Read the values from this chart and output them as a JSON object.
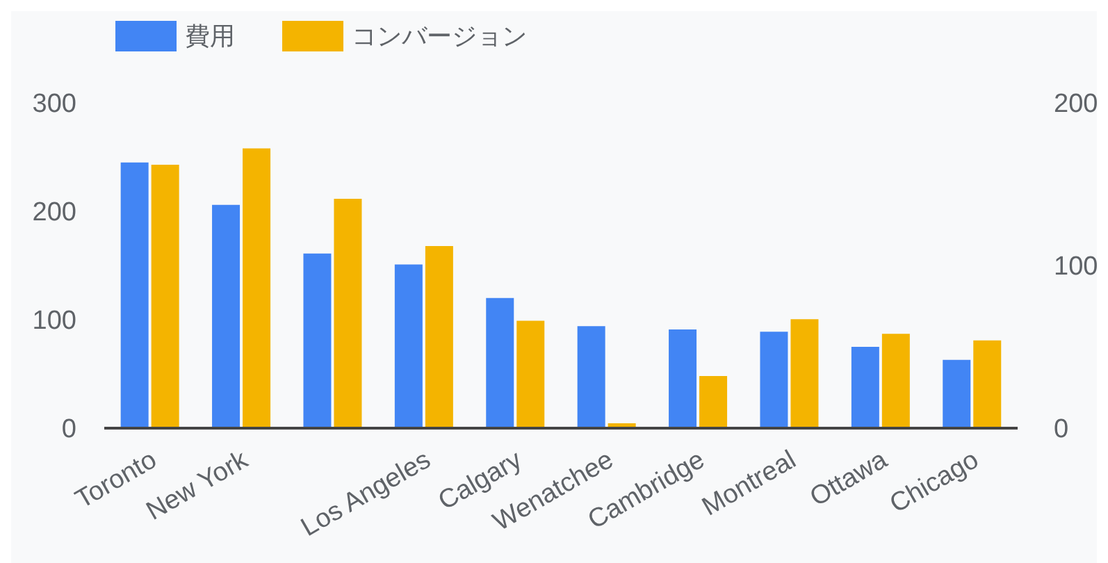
{
  "chart_data": {
    "type": "bar",
    "categories": [
      "Toronto",
      "New York",
      null,
      "Los Angeles",
      "Calgary",
      "Wenatchee",
      "Cambridge",
      "Montreal",
      "Ottawa",
      "Chicago"
    ],
    "series": [
      {
        "name": "費用",
        "color": "#4285f4",
        "values": [
          245,
          206,
          161,
          151,
          120,
          94,
          91,
          89,
          75,
          63
        ]
      },
      {
        "name": "コンバージョン",
        "color": "#f4b400",
        "axis": "y2",
        "values": [
          162,
          172,
          141,
          112,
          66,
          3,
          32,
          67,
          58,
          54
        ]
      }
    ],
    "ylim": [
      0,
      300
    ],
    "yticks": [
      0,
      100,
      200,
      300
    ],
    "y2lim": [
      0,
      200
    ],
    "y2ticks": [
      0,
      100,
      200
    ],
    "grid": false,
    "legend": "top left"
  }
}
